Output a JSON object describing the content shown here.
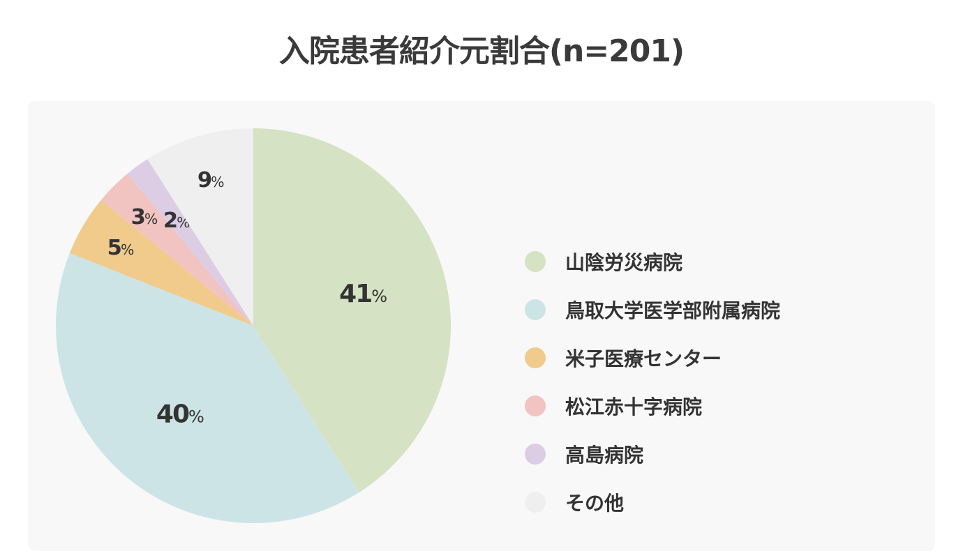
{
  "chart_data": {
    "type": "pie",
    "title": "入院患者紹介元割合(n=201)",
    "categories": [
      "山陰労災病院",
      "鳥取大学医学部附属病院",
      "米子医療センター",
      "松江赤十字病院",
      "高島病院",
      "その他"
    ],
    "values": [
      41,
      40,
      5,
      3,
      2,
      9
    ],
    "unit": "%",
    "colors": [
      "#d5e2c3",
      "#cde4e6",
      "#f0cb8c",
      "#f1c3c1",
      "#dccde5",
      "#efefef"
    ],
    "slices": [
      {
        "label": "山陰労災病院",
        "value": 41,
        "text": "41",
        "unit": "%",
        "color": "#d5e2c3"
      },
      {
        "label": "鳥取大学医学部附属病院",
        "value": 40,
        "text": "40",
        "unit": "%",
        "color": "#cde4e6"
      },
      {
        "label": "米子医療センター",
        "value": 5,
        "text": "5",
        "unit": "%",
        "color": "#f0cb8c"
      },
      {
        "label": "松江赤十字病院",
        "value": 3,
        "text": "3",
        "unit": "%",
        "color": "#f1c3c1"
      },
      {
        "label": "高島病院",
        "value": 2,
        "text": "2",
        "unit": "%",
        "color": "#dccde5"
      },
      {
        "label": "その他",
        "value": 9,
        "text": "9",
        "unit": "%",
        "color": "#efefef"
      }
    ],
    "legend_position": "right",
    "start_angle": "top",
    "direction": "clockwise"
  }
}
